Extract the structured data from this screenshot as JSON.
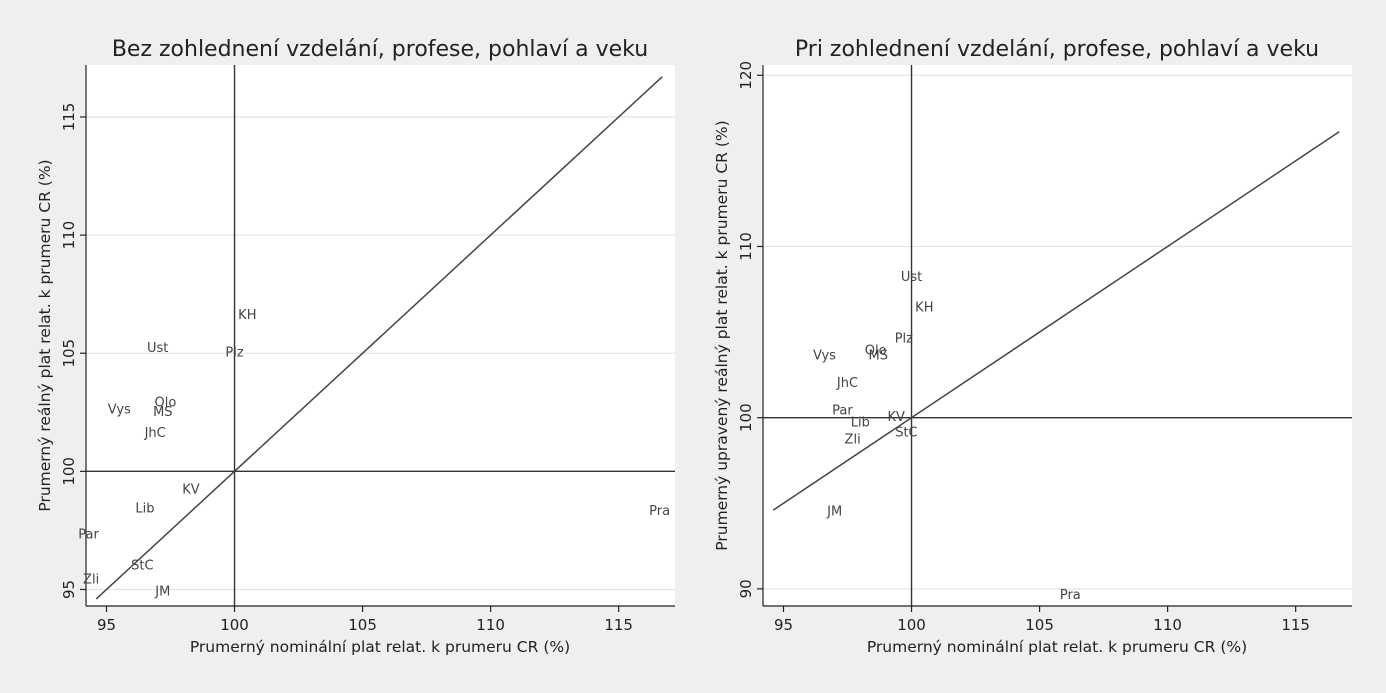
{
  "chart_data": [
    {
      "type": "scatter",
      "title": "Bez zohlednení vzdelání, profese, pohlaví a veku",
      "xlabel": "Prumerný nominální plat relat. k prumeru CR (%)",
      "ylabel": "Prumerný reálný plat relat. k prumeru CR (%)",
      "xlim": [
        94.2,
        117.2
      ],
      "ylim": [
        94.3,
        117.2
      ],
      "xticks": [
        95,
        100,
        105,
        110,
        115
      ],
      "yticks": [
        95,
        100,
        105,
        110,
        115
      ],
      "xtick_labels": [
        "95",
        "100",
        "105",
        "110",
        "115"
      ],
      "ytick_labels": [
        "95",
        "100",
        "105",
        "110",
        "115"
      ],
      "reference_lines": {
        "x": 100,
        "y": 100
      },
      "diagonal": {
        "x": [
          94.6,
          116.7
        ],
        "y": [
          94.6,
          116.7
        ]
      },
      "points": [
        {
          "label": "KH",
          "x": 100.5,
          "y": 106.6
        },
        {
          "label": "Ust",
          "x": 97.0,
          "y": 105.2
        },
        {
          "label": "Plz",
          "x": 100.0,
          "y": 105.0
        },
        {
          "label": "Vys",
          "x": 95.5,
          "y": 102.6
        },
        {
          "label": "Olo",
          "x": 97.3,
          "y": 102.9
        },
        {
          "label": "MS",
          "x": 97.2,
          "y": 102.5
        },
        {
          "label": "JhC",
          "x": 96.9,
          "y": 101.6
        },
        {
          "label": "KV",
          "x": 98.3,
          "y": 99.2
        },
        {
          "label": "Lib",
          "x": 96.5,
          "y": 98.4
        },
        {
          "label": "Pra",
          "x": 116.6,
          "y": 98.3
        },
        {
          "label": "Par",
          "x": 94.3,
          "y": 97.3
        },
        {
          "label": "StC",
          "x": 96.4,
          "y": 96.0
        },
        {
          "label": "Zli",
          "x": 94.4,
          "y": 95.4
        },
        {
          "label": "JM",
          "x": 97.2,
          "y": 94.9
        }
      ]
    },
    {
      "type": "scatter",
      "title": "Pri zohlednení vzdelání, profese, pohlaví a veku",
      "xlabel": "Prumerný nominální plat relat. k prumeru CR (%)",
      "ylabel": "Prumerný upravený reálný plat relat. k prumeru CR (%)",
      "xlim": [
        94.2,
        117.2
      ],
      "ylim": [
        89.0,
        120.6
      ],
      "xticks": [
        95,
        100,
        105,
        110,
        115
      ],
      "yticks": [
        90,
        100,
        110,
        120
      ],
      "xtick_labels": [
        "95",
        "100",
        "105",
        "110",
        "115"
      ],
      "ytick_labels": [
        "90",
        "100",
        "110",
        "120"
      ],
      "reference_lines": {
        "x": 100,
        "y": 100
      },
      "diagonal": {
        "x": [
          94.6,
          116.7
        ],
        "y": [
          94.6,
          116.7
        ]
      },
      "points": [
        {
          "label": "Ust",
          "x": 100.0,
          "y": 108.2
        },
        {
          "label": "KH",
          "x": 100.5,
          "y": 106.4
        },
        {
          "label": "Plz",
          "x": 99.7,
          "y": 104.6
        },
        {
          "label": "Vys",
          "x": 96.6,
          "y": 103.6
        },
        {
          "label": "Olo",
          "x": 98.6,
          "y": 103.9
        },
        {
          "label": "MS",
          "x": 98.7,
          "y": 103.6
        },
        {
          "label": "JhC",
          "x": 97.5,
          "y": 102.0
        },
        {
          "label": "Par",
          "x": 97.3,
          "y": 100.4
        },
        {
          "label": "KV",
          "x": 99.4,
          "y": 100.0
        },
        {
          "label": "Lib",
          "x": 98.0,
          "y": 99.7
        },
        {
          "label": "StC",
          "x": 99.8,
          "y": 99.1
        },
        {
          "label": "Zli",
          "x": 97.7,
          "y": 98.7
        },
        {
          "label": "JM",
          "x": 97.0,
          "y": 94.5
        },
        {
          "label": "Pra",
          "x": 106.2,
          "y": 89.6
        }
      ]
    }
  ]
}
